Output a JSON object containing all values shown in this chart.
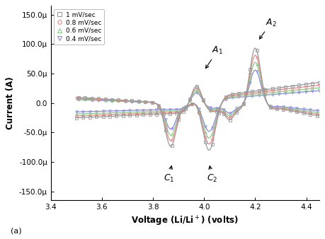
{
  "xlabel": "Voltage (Li/Li$^+$) (volts)",
  "ylabel": "Current (A)",
  "xlim": [
    3.4,
    4.45
  ],
  "ylim": [
    -0.000165,
    0.000165
  ],
  "yticks": [
    -0.00015,
    -0.0001,
    -5e-05,
    0.0,
    5e-05,
    0.0001,
    0.00015
  ],
  "ytick_labels": [
    "-150.0μ",
    "-100.0μ",
    "-50.0μ",
    "0.0",
    "50.0μ",
    "100.0μ",
    "150.0μ"
  ],
  "xticks": [
    3.4,
    3.6,
    3.8,
    4.0,
    4.2,
    4.4
  ],
  "legend_labels": [
    "1 mV/sec",
    "0.8 mV/sec",
    "0.6 mV/sec",
    "0.4 mV/sec"
  ],
  "colors": [
    "#999999",
    "#e88888",
    "#88cc88",
    "#8888dd"
  ],
  "markers": [
    "s",
    "o",
    "^",
    "v"
  ],
  "subplot_label": "(a)",
  "background_color": "#ffffff",
  "scale_factors": [
    1.0,
    0.87,
    0.74,
    0.6
  ]
}
